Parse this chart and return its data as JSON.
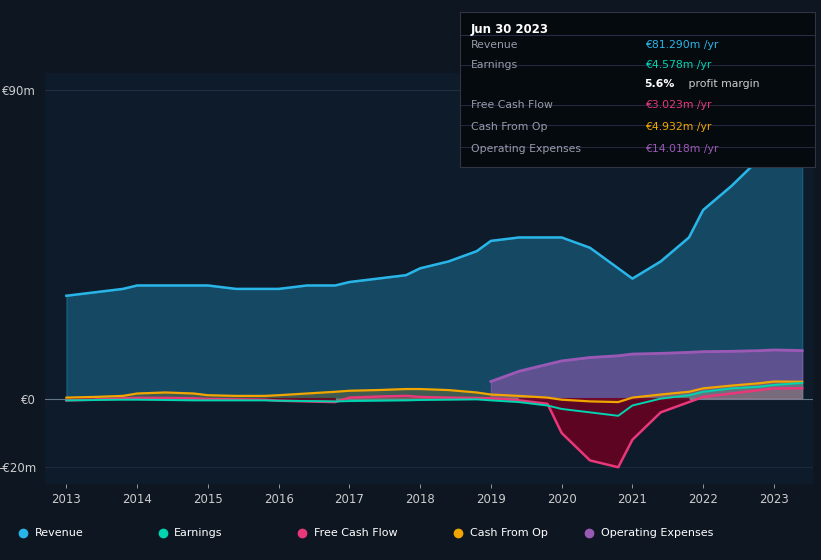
{
  "bg_color": "#0e1621",
  "chart_bg": "#0d1b2a",
  "years": [
    2013.0,
    2013.4,
    2013.8,
    2014.0,
    2014.4,
    2014.8,
    2015.0,
    2015.4,
    2015.8,
    2016.0,
    2016.4,
    2016.8,
    2017.0,
    2017.4,
    2017.8,
    2018.0,
    2018.4,
    2018.8,
    2019.0,
    2019.4,
    2019.8,
    2020.0,
    2020.4,
    2020.8,
    2021.0,
    2021.4,
    2021.8,
    2022.0,
    2022.4,
    2022.8,
    2023.0,
    2023.4
  ],
  "revenue": [
    30,
    31,
    32,
    33,
    33,
    33,
    33,
    32,
    32,
    32,
    33,
    33,
    34,
    35,
    36,
    38,
    40,
    43,
    46,
    47,
    47,
    47,
    44,
    38,
    35,
    40,
    47,
    55,
    62,
    70,
    78,
    81.29
  ],
  "earnings": [
    -0.5,
    -0.4,
    -0.3,
    -0.3,
    -0.4,
    -0.5,
    -0.5,
    -0.5,
    -0.5,
    -0.6,
    -0.7,
    -0.8,
    -0.7,
    -0.6,
    -0.5,
    -0.4,
    -0.3,
    -0.2,
    -0.5,
    -1.0,
    -2.0,
    -3.0,
    -4.0,
    -5.0,
    -2.0,
    0.0,
    1.0,
    2.0,
    3.0,
    3.5,
    4.0,
    4.578
  ],
  "free_cash_flow": [
    -0.5,
    -0.3,
    0.1,
    0.2,
    0.2,
    0.1,
    -0.1,
    -0.2,
    -0.3,
    -0.6,
    -0.8,
    -1.0,
    0.3,
    0.6,
    0.8,
    0.5,
    0.3,
    0.2,
    0.1,
    -0.5,
    -1.5,
    -10.0,
    -18.0,
    -20.0,
    -12.0,
    -4.0,
    -1.0,
    0.5,
    1.5,
    2.5,
    3.0,
    3.023
  ],
  "cash_from_op": [
    0.3,
    0.5,
    0.8,
    1.5,
    1.8,
    1.5,
    1.0,
    0.8,
    0.8,
    1.0,
    1.5,
    2.0,
    2.3,
    2.5,
    2.8,
    2.8,
    2.5,
    1.8,
    1.2,
    0.8,
    0.3,
    -0.3,
    -0.8,
    -1.0,
    0.3,
    1.2,
    2.0,
    3.0,
    3.8,
    4.5,
    5.0,
    4.932
  ],
  "operating_expenses": [
    0,
    0,
    0,
    0,
    0,
    0,
    0,
    0,
    0,
    0,
    0,
    0,
    0,
    0,
    0,
    0,
    0,
    0,
    5.0,
    8.0,
    10.0,
    11.0,
    12.0,
    12.5,
    13.0,
    13.2,
    13.5,
    13.7,
    13.8,
    14.0,
    14.2,
    14.018
  ],
  "revenue_color": "#29b5e8",
  "earnings_color": "#00d4b0",
  "free_cash_flow_color": "#e8387a",
  "cash_from_op_color": "#f0a500",
  "op_expenses_color": "#9b59b6",
  "neg_fill_color": "#6b0020",
  "ylim": [
    -25,
    95
  ],
  "ytick_vals": [
    -20,
    0,
    90
  ],
  "ytick_labels": [
    "-€20m",
    "€0",
    "€90m"
  ],
  "xtick_years": [
    2013,
    2014,
    2015,
    2016,
    2017,
    2018,
    2019,
    2020,
    2021,
    2022,
    2023
  ],
  "info_box": {
    "title": "Jun 30 2023",
    "rows": [
      {
        "label": "Revenue",
        "value": "€81.290m /yr",
        "value_color": "#29b5e8"
      },
      {
        "label": "Earnings",
        "value": "€4.578m /yr",
        "value_color": "#00d4b0"
      },
      {
        "label": "",
        "value": "5.6% profit margin",
        "value_color": "#ffffff"
      },
      {
        "label": "Free Cash Flow",
        "value": "€3.023m /yr",
        "value_color": "#e8387a"
      },
      {
        "label": "Cash From Op",
        "value": "€4.932m /yr",
        "value_color": "#f0a500"
      },
      {
        "label": "Operating Expenses",
        "value": "€14.018m /yr",
        "value_color": "#9b59b6"
      }
    ]
  },
  "legend_items": [
    {
      "label": "Revenue",
      "color": "#29b5e8"
    },
    {
      "label": "Earnings",
      "color": "#00d4b0"
    },
    {
      "label": "Free Cash Flow",
      "color": "#e8387a"
    },
    {
      "label": "Cash From Op",
      "color": "#f0a500"
    },
    {
      "label": "Operating Expenses",
      "color": "#9b59b6"
    }
  ]
}
